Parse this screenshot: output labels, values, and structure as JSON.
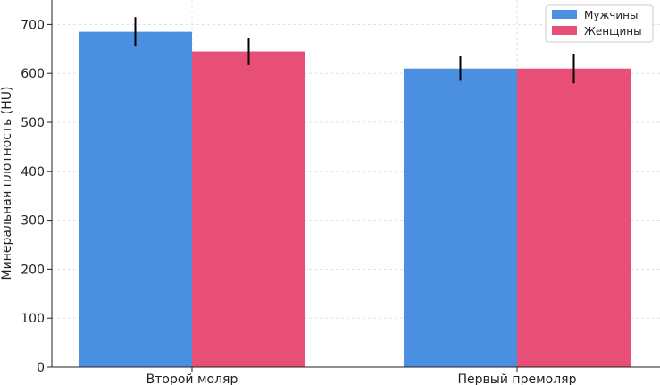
{
  "chart_data": {
    "type": "bar",
    "title": "",
    "xlabel": "",
    "ylabel": "Минеральная плотность (HU)",
    "categories": [
      "Второй моляр",
      "Первый премоляр"
    ],
    "series": [
      {
        "name": "Мужчины",
        "values": [
          685,
          610
        ],
        "errors": [
          30,
          25
        ],
        "color": "#4a8fe0"
      },
      {
        "name": "Женщины",
        "values": [
          645,
          610
        ],
        "errors": [
          28,
          30
        ],
        "color": "#e84f76"
      }
    ],
    "ylim": [
      0,
      750
    ],
    "yticks": [
      0,
      100,
      200,
      300,
      400,
      500,
      600,
      700
    ],
    "grid": true,
    "legend": "top-right"
  }
}
